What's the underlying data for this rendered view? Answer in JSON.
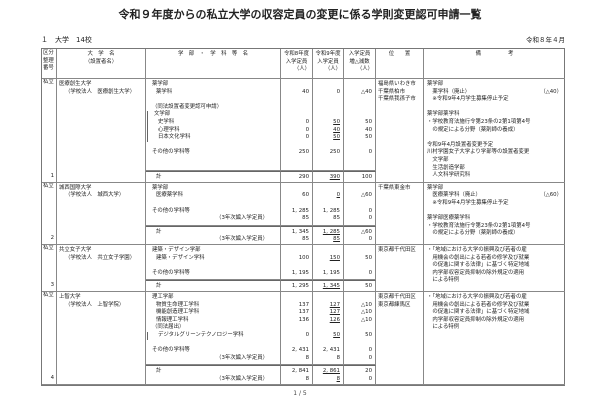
{
  "title": "令和９年度からの私立大学の収容定員の変更に係る学則変更認可申請一覧",
  "section": "１　大学　14校",
  "date": "令和８年４月",
  "page": "1 / 5",
  "headers": {
    "category": [
      "区分",
      "整理",
      "番号"
    ],
    "university": [
      "大　学　名",
      "（設置者名）"
    ],
    "department": [
      "学　部　・　学　科　等　名"
    ],
    "r8": [
      "令和8年度",
      "入学定員"
    ],
    "r9": [
      "令和9年度",
      "入学定員"
    ],
    "diff": [
      "入学定員",
      "増△減数"
    ],
    "location": [
      "位　　置"
    ],
    "notes": [
      "備　　　　　考"
    ],
    "unit": "（人）"
  },
  "rows": [
    {
      "category": "私立",
      "number": "1",
      "university": "医療創生大学",
      "founder": "（学校法人　医療創生大学）",
      "lines": [
        {
          "t": "薬学部"
        },
        {
          "t": "薬学科",
          "ind": 1,
          "n": [
            "40",
            "0",
            "△40"
          ]
        },
        {
          "t": ""
        },
        {
          "t": "（同法設置者変更認可申請）"
        },
        {
          "t": "文学部",
          "br": true
        },
        {
          "t": "史学科",
          "ind": 1,
          "br": true,
          "n": [
            "0",
            "50",
            "50"
          ],
          "r9_underlined": true
        },
        {
          "t": "心理学科",
          "ind": 1,
          "br": true,
          "n": [
            "0",
            "40",
            "40"
          ],
          "r9_underlined": true
        },
        {
          "t": "日本文化学科",
          "ind": 1,
          "br": true,
          "n": [
            "0",
            "50",
            "50"
          ],
          "r9_underlined": true
        },
        {
          "t": ""
        },
        {
          "t": "その他の学科等",
          "n": [
            "250",
            "250",
            "0"
          ]
        }
      ],
      "totals": [
        {
          "t": "計",
          "ind": 1,
          "n": [
            "290",
            "390",
            "100"
          ],
          "r9_underlined": true
        }
      ],
      "location": [
        "福島県いわき市",
        "千葉県柏市",
        "千葉県我孫子市"
      ],
      "notes": [
        {
          "t": "薬学部"
        },
        {
          "t": "　薬学科（廃止）",
          "r": "（△40）"
        },
        {
          "t": "　※令和9年4月学生募集停止予定"
        },
        {
          "t": ""
        },
        {
          "t": "薬学部薬学科"
        },
        {
          "t": "・学校教育法施行令第23条の2第1項第4号"
        },
        {
          "t": "　の規定による分野（薬剤師の養成）"
        },
        {
          "t": ""
        },
        {
          "t": "令和9年4月設置者変更予定"
        },
        {
          "t": "川村学園女子大学より学部等の設置者変更"
        },
        {
          "t": "　文学部"
        },
        {
          "t": "　生活創造学部"
        },
        {
          "t": "　人文科学研究科"
        }
      ]
    },
    {
      "category": "私立",
      "number": "2",
      "university": "城西国際大学",
      "founder": "（学校法人　城西大学）",
      "lines": [
        {
          "t": "薬学部"
        },
        {
          "t": "医療薬学科",
          "ind": 1,
          "n": [
            "60",
            "0",
            "△60"
          ],
          "r9_underlined": true
        },
        {
          "t": ""
        },
        {
          "t": "その他の学科等",
          "n": [
            "1, 285",
            "1, 285",
            "0"
          ]
        },
        {
          "t": "（3年次編入学定員）",
          "sub": true,
          "n": [
            "85",
            "85",
            "0"
          ]
        }
      ],
      "totals": [
        {
          "t": "計",
          "ind": 1,
          "n": [
            "1, 345",
            "1, 285",
            "△60"
          ],
          "r9_underlined": true
        },
        {
          "t": "（3年次編入学定員）",
          "sub": true,
          "n": [
            "85",
            "85",
            "0"
          ],
          "r9_underlined": true
        }
      ],
      "location": [
        "千葉県東金市"
      ],
      "notes": [
        {
          "t": "薬学部"
        },
        {
          "t": "　医療薬学科（廃止）",
          "r": "（△60）"
        },
        {
          "t": "　※令和9年4月学生募集停止予定"
        },
        {
          "t": ""
        },
        {
          "t": "薬学部医療薬学科"
        },
        {
          "t": "・学校教育法施行令第23条の2第1項第4号"
        },
        {
          "t": "　の規定による分野（薬剤師の養成）"
        }
      ]
    },
    {
      "category": "私立",
      "number": "3",
      "university": "共立女子大学",
      "founder": "（学校法人　共立女子学園）",
      "lines": [
        {
          "t": "建築・デザイン学部"
        },
        {
          "t": "建築・デザイン学科",
          "ind": 1,
          "n": [
            "100",
            "150",
            "50"
          ],
          "r9_underlined": true
        },
        {
          "t": ""
        },
        {
          "t": "その他の学科等",
          "n": [
            "1, 195",
            "1, 195",
            "0"
          ]
        }
      ],
      "totals": [
        {
          "t": "計",
          "ind": 1,
          "n": [
            "1, 295",
            "1, 345",
            "50"
          ],
          "r9_underlined": true
        }
      ],
      "location": [
        "東京都千代田区"
      ],
      "notes": [
        {
          "t": "・「地域における大学の振興及び若者の雇"
        },
        {
          "t": "　用機会の創出による若者の修学及び就業"
        },
        {
          "t": "　の促進に関する法律」に基づく特定地域"
        },
        {
          "t": "　内学部収容定員抑制の除外規定の適用"
        },
        {
          "t": "　による特例"
        }
      ]
    },
    {
      "category": "私立",
      "number": "4",
      "university": "上智大学",
      "founder": "（学校法人　上智学院）",
      "lines": [
        {
          "t": "理工学部"
        },
        {
          "t": "物質生命理工学科",
          "ind": 1,
          "n": [
            "137",
            "127",
            "△10"
          ],
          "r9_underlined": true
        },
        {
          "t": "機能創造理工学科",
          "ind": 1,
          "n": [
            "137",
            "127",
            "△10"
          ],
          "r9_underlined": true
        },
        {
          "t": "情報理工学科",
          "ind": 1,
          "n": [
            "136",
            "126",
            "△10"
          ],
          "r9_underlined": true
        },
        {
          "t": "（同法届出）"
        },
        {
          "t": "デジタルグリーンテクノロジー学科",
          "ind": 1,
          "br": true,
          "n": [
            "0",
            "50",
            "50"
          ],
          "r9_underlined": true
        },
        {
          "t": ""
        },
        {
          "t": "その他の学科等",
          "n": [
            "2, 431",
            "2, 431",
            "0"
          ]
        },
        {
          "t": "（3年次編入学定員）",
          "sub": true,
          "n": [
            "8",
            "8",
            "0"
          ]
        }
      ],
      "totals": [
        {
          "t": "計",
          "ind": 1,
          "n": [
            "2, 841",
            "2, 861",
            "20"
          ],
          "r9_underlined": true
        },
        {
          "t": "（3年次編入学定員）",
          "sub": true,
          "n": [
            "8",
            "8",
            "0"
          ],
          "r9_underlined": true
        }
      ],
      "location": [
        "東京都千代田区",
        "東京都練馬区"
      ],
      "notes": [
        {
          "t": "・「地域における大学の振興及び若者の雇"
        },
        {
          "t": "　用機会の創出による若者の修学及び就業"
        },
        {
          "t": "　の促進に関する法律」に基づく特定地域"
        },
        {
          "t": "　内学部収容定員抑制の除外規定の適用"
        },
        {
          "t": "　による特例"
        }
      ]
    }
  ]
}
